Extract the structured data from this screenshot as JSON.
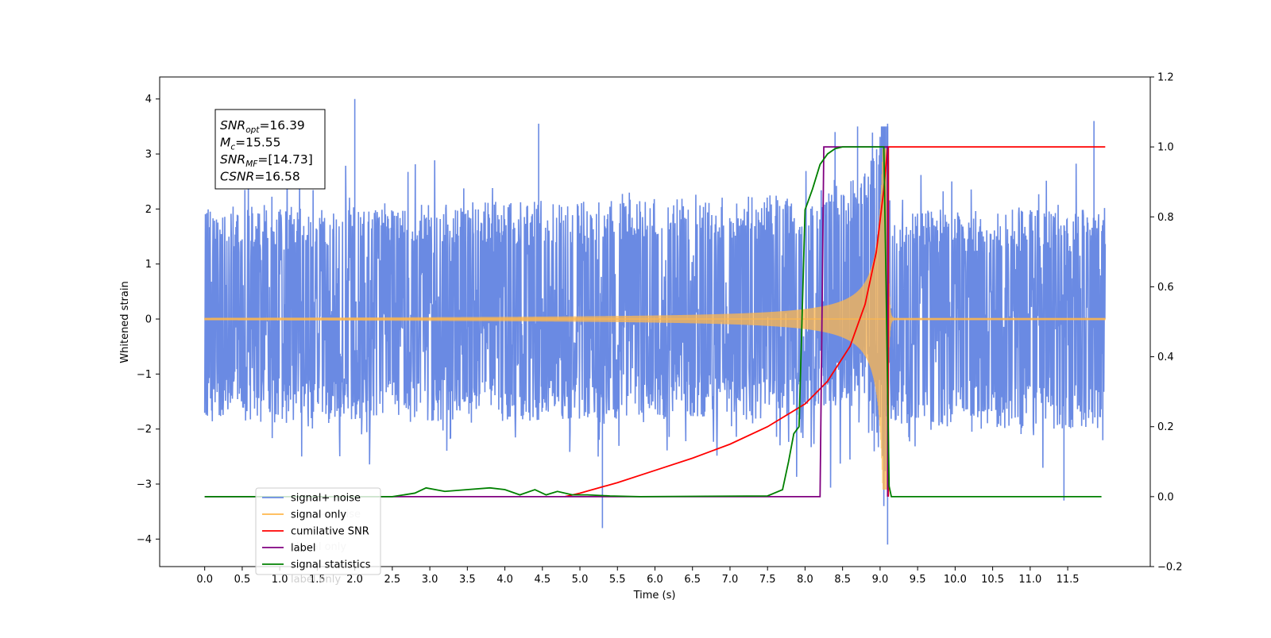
{
  "chart_data": {
    "type": "line",
    "xlabel": "Time (s)",
    "ylabel": "Whitened strain",
    "xlim": [
      -0.6,
      12.6
    ],
    "ylim": [
      -4.5,
      4.4
    ],
    "y2lim": [
      -0.2,
      1.2
    ],
    "x_ticks": [
      0.0,
      0.5,
      1.0,
      1.5,
      2.0,
      2.5,
      3.0,
      3.5,
      4.0,
      4.5,
      5.0,
      5.5,
      6.0,
      6.5,
      7.0,
      7.5,
      8.0,
      8.5,
      9.0,
      9.5,
      10.0,
      10.5,
      11.0,
      11.5
    ],
    "x_tick_labels": [
      "0.0",
      "0.5",
      "1.0",
      "1.5",
      "2.0",
      "2.5",
      "3.0",
      "3.5",
      "4.0",
      "4.5",
      "5.0",
      "5.5",
      "6.0",
      "6.5",
      "7.0",
      "7.5",
      "8.0",
      "8.5",
      "9.0",
      "9.5",
      "10.0",
      "10.5",
      "11.0",
      "11.5"
    ],
    "y_ticks": [
      -4,
      -3,
      -2,
      -1,
      0,
      1,
      2,
      3,
      4
    ],
    "y_tick_labels": [
      "−4",
      "−3",
      "−2",
      "−1",
      "0",
      "1",
      "2",
      "3",
      "4"
    ],
    "y2_ticks": [
      -0.2,
      0.0,
      0.2,
      0.4,
      0.6,
      0.8,
      1.0,
      1.2
    ],
    "y2_tick_labels": [
      "−0.2",
      "0.0",
      "0.2",
      "0.4",
      "0.6",
      "0.8",
      "1.0",
      "1.2"
    ],
    "grid": false,
    "legend_position": "lower-left",
    "annotation": {
      "lines": [
        {
          "base": "SNR",
          "sub": "opt",
          "value": "=16.39"
        },
        {
          "base": "M",
          "sub": "c",
          "value": "=15.55"
        },
        {
          "base": "SNR",
          "sub": "MF",
          "value": "=[14.73]"
        },
        {
          "base": "CSNR",
          "sub": "",
          "value": "=16.58"
        }
      ]
    },
    "noise_envelope": {
      "x": [
        0.0,
        0.5,
        1.0,
        1.5,
        2.0,
        2.5,
        3.0,
        3.5,
        4.0,
        4.5,
        5.0,
        5.5,
        6.0,
        6.5,
        7.0,
        7.5,
        8.0,
        8.5,
        9.0,
        9.5,
        10.0,
        10.5,
        11.0,
        11.5,
        12.0
      ],
      "typical_abs": 2.0,
      "max": 4.0,
      "min": -4.1
    },
    "series": [
      {
        "name": "signal+ noise",
        "axis": "left",
        "color": "#6a8ae3",
        "style": "dense-noise",
        "peaks": [
          {
            "x": 2.0,
            "y": 4.0
          },
          {
            "x": 9.1,
            "y": 3.55
          },
          {
            "x": 11.85,
            "y": 3.6
          },
          {
            "x": 8.4,
            "y": 3.4
          },
          {
            "x": 8.7,
            "y": 3.5
          },
          {
            "x": 9.05,
            "y": -3.4
          },
          {
            "x": 9.1,
            "y": -4.1
          },
          {
            "x": 5.3,
            "y": -3.8
          },
          {
            "x": 4.45,
            "y": 3.55
          },
          {
            "x": 11.45,
            "y": -3.3
          }
        ]
      },
      {
        "name": "signal only",
        "axis": "left",
        "color": "#ffb74d",
        "style": "chirp",
        "x_start": 0.0,
        "x_merger": 9.1,
        "x_end": 12.0,
        "peak_amplitude": 3.1
      },
      {
        "name": "cumilative SNR",
        "axis": "right",
        "color": "#ff0000",
        "x": [
          4.8,
          5.0,
          5.5,
          6.0,
          6.5,
          7.0,
          7.5,
          8.0,
          8.3,
          8.6,
          8.8,
          8.95,
          9.05,
          9.1,
          9.11,
          12.0
        ],
        "y": [
          0.0,
          0.01,
          0.04,
          0.075,
          0.11,
          0.15,
          0.2,
          0.265,
          0.33,
          0.43,
          0.55,
          0.7,
          0.88,
          1.0,
          1.0,
          1.0
        ]
      },
      {
        "name": "label",
        "axis": "right",
        "color": "#800080",
        "x": [
          0.0,
          8.2,
          8.25,
          9.1,
          9.1
        ],
        "y": [
          0.0,
          0.0,
          1.0,
          1.0,
          0.0
        ]
      },
      {
        "name": "signal statistics",
        "axis": "right",
        "color": "#008000",
        "x": [
          0.0,
          2.5,
          2.8,
          2.95,
          3.2,
          3.5,
          3.8,
          4.0,
          4.2,
          4.4,
          4.55,
          4.7,
          4.9,
          5.1,
          5.4,
          5.8,
          7.5,
          7.7,
          7.78,
          7.85,
          7.92,
          8.0,
          8.1,
          8.2,
          8.3,
          8.4,
          8.5,
          8.6,
          9.05,
          9.08,
          9.12,
          9.15,
          11.95
        ],
        "y": [
          0.0,
          0.0,
          0.01,
          0.025,
          0.015,
          0.02,
          0.025,
          0.02,
          0.005,
          0.02,
          0.005,
          0.015,
          0.005,
          0.005,
          0.002,
          0.0,
          0.002,
          0.02,
          0.1,
          0.18,
          0.2,
          0.82,
          0.88,
          0.95,
          0.98,
          0.995,
          1.0,
          1.0,
          1.0,
          0.6,
          0.03,
          0.0,
          0.0
        ]
      }
    ],
    "legend_entries": [
      {
        "label": "signal+ noise",
        "color": "#6a8ae3"
      },
      {
        "label": "signal only",
        "color": "#ffb74d"
      },
      {
        "label": "cumilative SNR",
        "color": "#ff0000"
      },
      {
        "label": "label",
        "color": "#800080"
      },
      {
        "label": "signal statistics",
        "color": "#008000"
      }
    ],
    "legend_ghost_text": [
      "signal+ noise",
      "signal only",
      "label only"
    ]
  }
}
